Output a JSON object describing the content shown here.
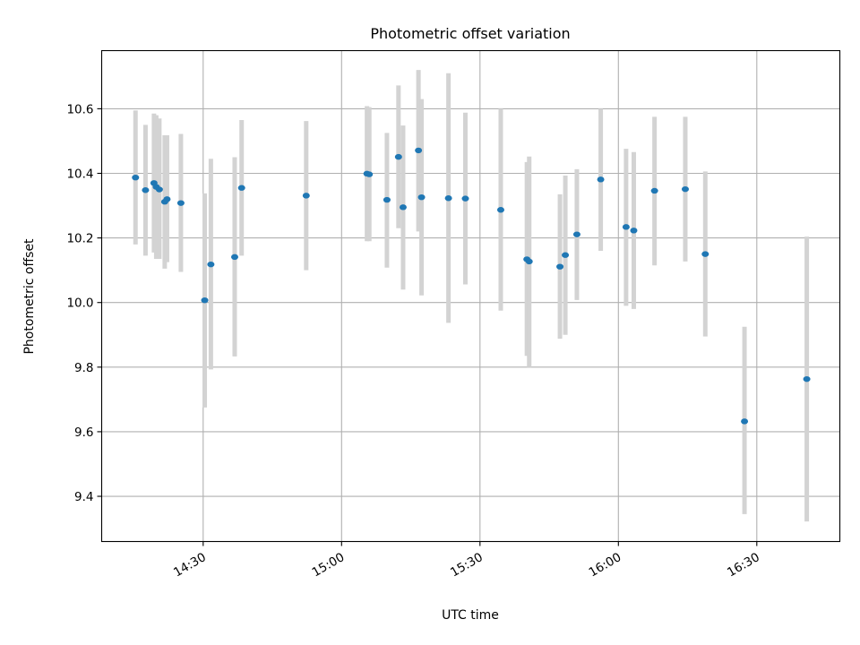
{
  "chart_data": {
    "type": "scatter",
    "title": "Photometric offset variation",
    "xlabel": "UTC time",
    "ylabel": "Photometric offset",
    "x_unit": "UTC time (HH:MM)",
    "xlim": [
      "14:08",
      "16:48"
    ],
    "ylim": [
      9.26,
      10.78
    ],
    "x_ticks": [
      "14:30",
      "15:00",
      "15:30",
      "16:00",
      "16:30"
    ],
    "y_ticks": [
      "9.4",
      "9.6",
      "9.8",
      "10.0",
      "10.2",
      "10.4",
      "10.6"
    ],
    "grid": true,
    "legend": "none",
    "errorbar_color": "#d3d3d3",
    "point_color": "#1f77b4",
    "points": [
      {
        "x": "14:15:20",
        "y": 10.387,
        "ylow": 10.18,
        "yhigh": 10.595
      },
      {
        "x": "14:17:30",
        "y": 10.348,
        "ylow": 10.145,
        "yhigh": 10.55
      },
      {
        "x": "14:19:20",
        "y": 10.37,
        "ylow": 10.155,
        "yhigh": 10.585
      },
      {
        "x": "14:19:50",
        "y": 10.358,
        "ylow": 10.135,
        "yhigh": 10.58
      },
      {
        "x": "14:20:30",
        "y": 10.35,
        "ylow": 10.135,
        "yhigh": 10.57
      },
      {
        "x": "14:21:40",
        "y": 10.312,
        "ylow": 10.105,
        "yhigh": 10.518
      },
      {
        "x": "14:22:10",
        "y": 10.32,
        "ylow": 10.125,
        "yhigh": 10.518
      },
      {
        "x": "14:25:10",
        "y": 10.308,
        "ylow": 10.095,
        "yhigh": 10.522
      },
      {
        "x": "14:30:20",
        "y": 10.007,
        "ylow": 9.675,
        "yhigh": 10.338
      },
      {
        "x": "14:31:40",
        "y": 10.118,
        "ylow": 9.793,
        "yhigh": 10.445
      },
      {
        "x": "14:36:50",
        "y": 10.141,
        "ylow": 9.833,
        "yhigh": 10.45
      },
      {
        "x": "14:38:20",
        "y": 10.355,
        "ylow": 10.145,
        "yhigh": 10.565
      },
      {
        "x": "14:52:20",
        "y": 10.331,
        "ylow": 10.1,
        "yhigh": 10.562
      },
      {
        "x": "15:05:30",
        "y": 10.399,
        "ylow": 10.19,
        "yhigh": 10.608
      },
      {
        "x": "15:06:00",
        "y": 10.397,
        "ylow": 10.19,
        "yhigh": 10.605
      },
      {
        "x": "15:09:50",
        "y": 10.318,
        "ylow": 10.108,
        "yhigh": 10.525
      },
      {
        "x": "15:12:20",
        "y": 10.451,
        "ylow": 10.23,
        "yhigh": 10.672
      },
      {
        "x": "15:13:20",
        "y": 10.295,
        "ylow": 10.04,
        "yhigh": 10.548
      },
      {
        "x": "15:16:40",
        "y": 10.471,
        "ylow": 10.22,
        "yhigh": 10.72
      },
      {
        "x": "15:17:20",
        "y": 10.326,
        "ylow": 10.022,
        "yhigh": 10.63
      },
      {
        "x": "15:23:10",
        "y": 10.323,
        "ylow": 9.937,
        "yhigh": 10.71
      },
      {
        "x": "15:26:50",
        "y": 10.322,
        "ylow": 10.056,
        "yhigh": 10.588
      },
      {
        "x": "15:34:30",
        "y": 10.287,
        "ylow": 9.975,
        "yhigh": 10.6
      },
      {
        "x": "15:40:10",
        "y": 10.134,
        "ylow": 9.835,
        "yhigh": 10.435
      },
      {
        "x": "15:40:40",
        "y": 10.127,
        "ylow": 9.8,
        "yhigh": 10.452
      },
      {
        "x": "15:47:20",
        "y": 10.111,
        "ylow": 9.888,
        "yhigh": 10.335
      },
      {
        "x": "15:48:30",
        "y": 10.147,
        "ylow": 9.9,
        "yhigh": 10.393
      },
      {
        "x": "15:51:00",
        "y": 10.211,
        "ylow": 10.008,
        "yhigh": 10.413
      },
      {
        "x": "15:56:10",
        "y": 10.381,
        "ylow": 10.16,
        "yhigh": 10.6
      },
      {
        "x": "16:01:40",
        "y": 10.234,
        "ylow": 9.99,
        "yhigh": 10.476
      },
      {
        "x": "16:03:20",
        "y": 10.223,
        "ylow": 9.98,
        "yhigh": 10.466
      },
      {
        "x": "16:07:50",
        "y": 10.346,
        "ylow": 10.115,
        "yhigh": 10.575
      },
      {
        "x": "16:14:30",
        "y": 10.351,
        "ylow": 10.127,
        "yhigh": 10.575
      },
      {
        "x": "16:18:50",
        "y": 10.15,
        "ylow": 9.895,
        "yhigh": 10.406
      },
      {
        "x": "16:27:20",
        "y": 9.632,
        "ylow": 9.345,
        "yhigh": 9.925
      },
      {
        "x": "16:40:50",
        "y": 9.763,
        "ylow": 9.322,
        "yhigh": 10.204
      }
    ]
  }
}
